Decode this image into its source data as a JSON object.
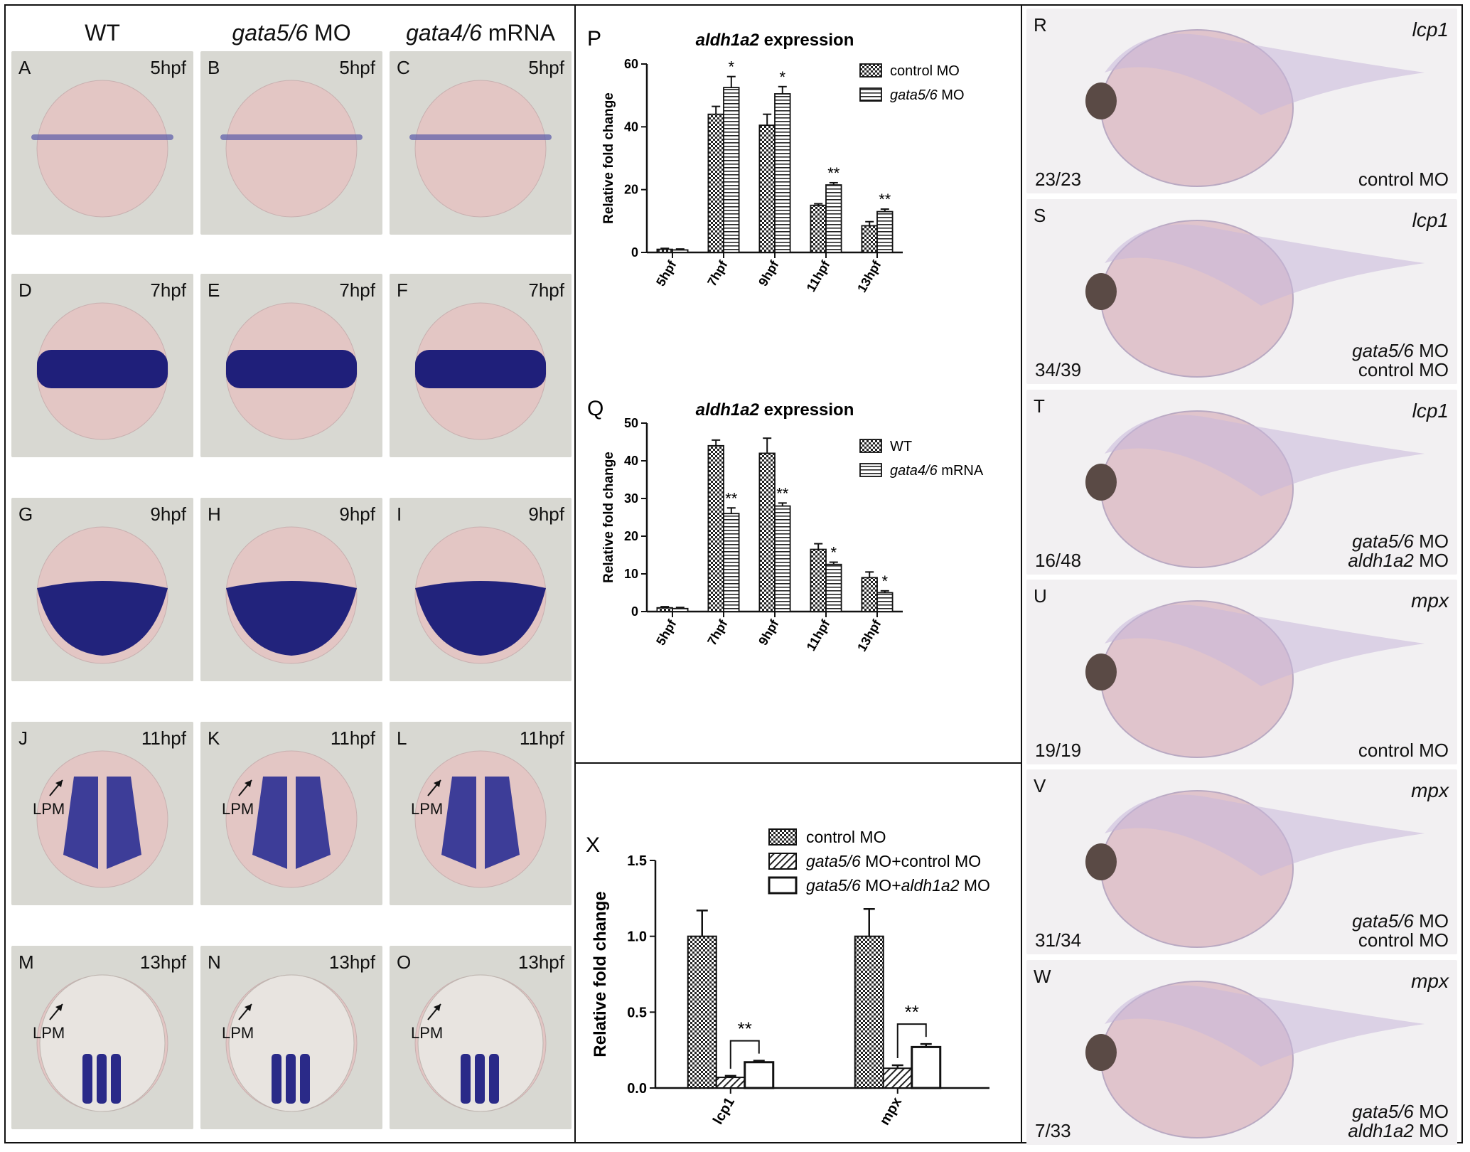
{
  "columns": [
    {
      "gene": "",
      "suffix": "WT"
    },
    {
      "gene": "gata5/6",
      "suffix": " MO"
    },
    {
      "gene": "gata4/6",
      "suffix": " mRNA"
    }
  ],
  "ish_rows": [
    {
      "time": "5hpf",
      "letters": [
        "A",
        "B",
        "C"
      ],
      "lpm": false
    },
    {
      "time": "7hpf",
      "letters": [
        "D",
        "E",
        "F"
      ],
      "lpm": false
    },
    {
      "time": "9hpf",
      "letters": [
        "G",
        "H",
        "I"
      ],
      "lpm": false
    },
    {
      "time": "11hpf",
      "letters": [
        "J",
        "K",
        "L"
      ],
      "lpm": true
    },
    {
      "time": "13hpf",
      "letters": [
        "M",
        "N",
        "O"
      ],
      "lpm": true
    }
  ],
  "lpm_label": "LPM",
  "side_panels": [
    {
      "letter": "R",
      "gene": "lcp1",
      "count": "23/23",
      "cond1": "",
      "cond1_gene": "",
      "cond2": "control MO",
      "cond2_gene": ""
    },
    {
      "letter": "S",
      "gene": "lcp1",
      "count": "34/39",
      "cond1_gene": "gata5/6",
      "cond1": " MO",
      "cond2_gene": "",
      "cond2": "control MO"
    },
    {
      "letter": "T",
      "gene": "lcp1",
      "count": "16/48",
      "cond1_gene": "gata5/6",
      "cond1": " MO",
      "cond2_gene": "aldh1a2",
      "cond2": " MO"
    },
    {
      "letter": "U",
      "gene": "mpx",
      "count": "19/19",
      "cond1": "",
      "cond1_gene": "",
      "cond2": "control MO",
      "cond2_gene": ""
    },
    {
      "letter": "V",
      "gene": "mpx",
      "count": "31/34",
      "cond1_gene": "gata5/6",
      "cond1": " MO",
      "cond2_gene": "",
      "cond2": "control MO"
    },
    {
      "letter": "W",
      "gene": "mpx",
      "count": "7/33",
      "cond1_gene": "gata5/6",
      "cond1": " MO",
      "cond2_gene": "aldh1a2",
      "cond2": " MO"
    }
  ],
  "chart_data": [
    {
      "panel": "P",
      "type": "bar",
      "title_gene": "aldh1a2",
      "title": " expression",
      "ylabel": "Relative fold change",
      "ylim": [
        0,
        60
      ],
      "yticks": [
        "0",
        "20",
        "40",
        "60"
      ],
      "categories": [
        "5hpf",
        "7hpf",
        "9hpf",
        "11hpf",
        "13hpf"
      ],
      "series": [
        {
          "name": "control MO",
          "values": [
            1,
            44,
            40.5,
            15,
            8.5
          ],
          "errors": [
            0.3,
            2.5,
            3.5,
            0.5,
            1.3
          ],
          "sig": [
            "",
            "",
            "",
            "",
            ""
          ]
        },
        {
          "name_gene": "gata5/6",
          "name": " MO",
          "values": [
            0.8,
            52.5,
            50.5,
            21.5,
            13
          ],
          "errors": [
            0.3,
            3.5,
            2.3,
            0.7,
            0.8
          ],
          "sig": [
            "",
            "*",
            "*",
            "**",
            "**"
          ]
        }
      ]
    },
    {
      "panel": "Q",
      "type": "bar",
      "title_gene": "aldh1a2",
      "title": " expression",
      "ylabel": "Relative fold change",
      "ylim": [
        0,
        50
      ],
      "yticks": [
        "0",
        "10",
        "20",
        "30",
        "40",
        "50"
      ],
      "categories": [
        "5hpf",
        "7hpf",
        "9hpf",
        "11hpf",
        "13hpf"
      ],
      "series": [
        {
          "name": "WT",
          "values": [
            1,
            44,
            42,
            16.5,
            9
          ],
          "errors": [
            0.3,
            1.5,
            4,
            1.5,
            1.5
          ],
          "sig": [
            "",
            "",
            "",
            "",
            ""
          ]
        },
        {
          "name_gene": "gata4/6",
          "name": " mRNA",
          "values": [
            0.8,
            26,
            28,
            12.5,
            5
          ],
          "errors": [
            0.3,
            1.5,
            0.8,
            0.6,
            0.5
          ],
          "sig": [
            "",
            "**",
            "**",
            "*",
            "*"
          ]
        }
      ]
    },
    {
      "panel": "X",
      "type": "bar",
      "ylabel": "Relative fold change",
      "ylim": [
        0,
        1.5
      ],
      "yticks": [
        "0.0",
        "0.5",
        "1.0",
        "1.5"
      ],
      "categories": [
        "lcp1",
        "mpx"
      ],
      "series": [
        {
          "name": "control MO",
          "values": [
            1.0,
            1.0
          ],
          "errors": [
            0.17,
            0.18
          ]
        },
        {
          "name_gene": "gata5/6",
          "name": " MO+control MO",
          "values": [
            0.07,
            0.13
          ],
          "errors": [
            0.01,
            0.02
          ]
        },
        {
          "name_gene": "gata5/6",
          "name": " MO+",
          "name_gene2": "aldh1a2",
          "name2": " MO",
          "values": [
            0.17,
            0.27
          ],
          "errors": [
            0.01,
            0.02
          ]
        }
      ],
      "significance": [
        "**",
        "**"
      ]
    }
  ]
}
